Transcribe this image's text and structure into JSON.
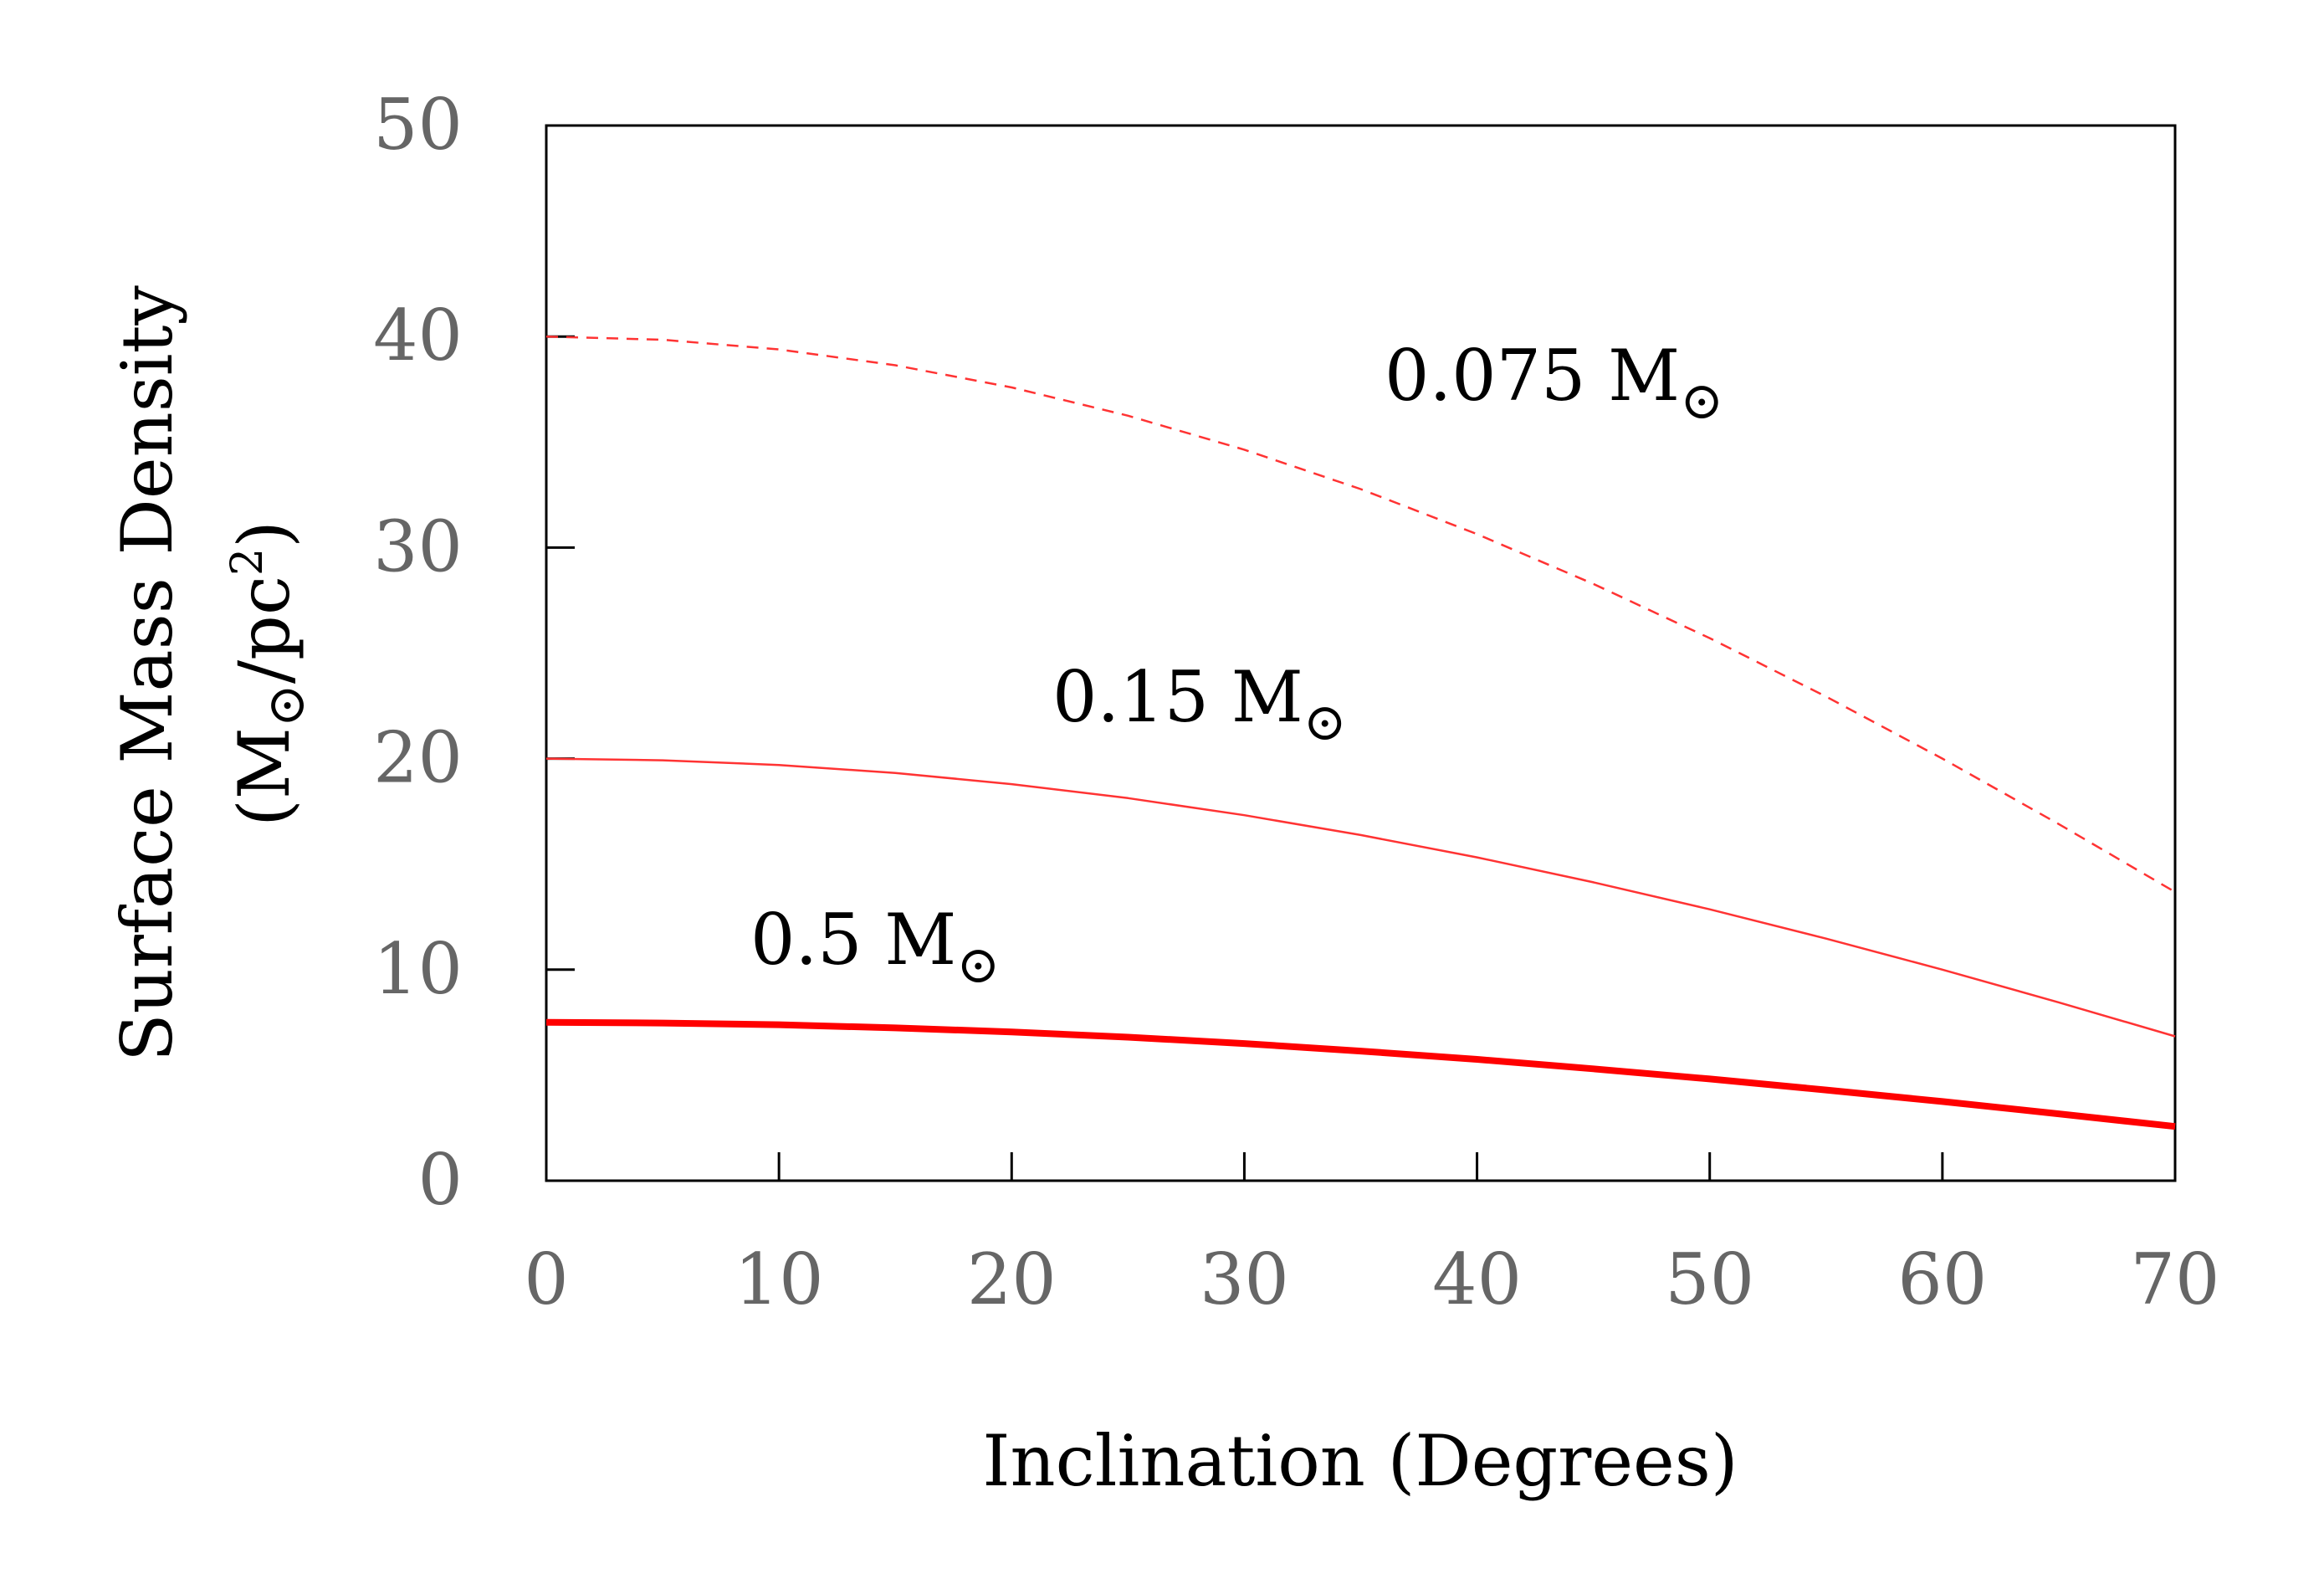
{
  "chart_data": {
    "type": "line",
    "title": "",
    "xlabel": "Inclination (Degrees)",
    "ylabel_line1": "Surface Mass Density",
    "ylabel_line2": {
      "open": "(M",
      "sun": "⊙",
      "mid": "/pc",
      "sup": "2",
      "close": ")"
    },
    "xlim": [
      0,
      70
    ],
    "ylim": [
      0,
      50
    ],
    "x_ticks": [
      "0",
      "10",
      "20",
      "30",
      "40",
      "50",
      "60",
      "70"
    ],
    "y_ticks": [
      "0",
      "10",
      "20",
      "30",
      "40",
      "50"
    ],
    "grid": false,
    "series": [
      {
        "name": "0.075 M⊙",
        "label_text": "0.075 M",
        "label_sun": "⊙",
        "style": "dashed",
        "color": "#ff3333",
        "x": [
          0,
          5,
          10,
          15,
          20,
          25,
          30,
          35,
          40,
          45,
          50,
          55,
          60,
          65,
          70
        ],
        "values": [
          40.0,
          39.85,
          39.39,
          38.64,
          37.59,
          36.25,
          34.64,
          32.77,
          30.64,
          28.28,
          25.71,
          22.94,
          20.0,
          16.9,
          13.68
        ]
      },
      {
        "name": "0.15 M⊙",
        "label_text": "0.15 M",
        "label_sun": "⊙",
        "style": "thin",
        "color": "#ff3333",
        "x": [
          0,
          5,
          10,
          15,
          20,
          25,
          30,
          35,
          40,
          45,
          50,
          55,
          60,
          65,
          70
        ],
        "values": [
          20.0,
          19.92,
          19.7,
          19.32,
          18.79,
          18.13,
          17.32,
          16.38,
          15.32,
          14.14,
          12.86,
          11.47,
          10.0,
          8.45,
          6.84
        ]
      },
      {
        "name": "0.5 M⊙",
        "label_text": "0.5 M",
        "label_sun": "⊙",
        "style": "thick",
        "color": "#ff0000",
        "x": [
          0,
          5,
          10,
          15,
          20,
          25,
          30,
          35,
          40,
          45,
          50,
          55,
          60,
          65,
          70
        ],
        "values": [
          7.5,
          7.47,
          7.39,
          7.24,
          7.05,
          6.8,
          6.5,
          6.14,
          5.75,
          5.3,
          4.82,
          4.3,
          3.75,
          3.17,
          2.57
        ]
      }
    ]
  }
}
